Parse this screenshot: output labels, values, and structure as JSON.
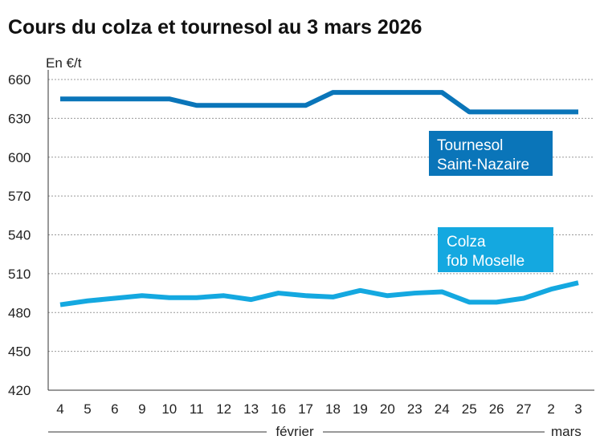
{
  "chart_data": {
    "type": "line",
    "title": "Cours du colza et tournesol au 3 mars 2026",
    "ylabel": "En €/t",
    "ylim": [
      420,
      660
    ],
    "yticks": [
      420,
      450,
      480,
      510,
      540,
      570,
      600,
      630,
      660
    ],
    "categories": [
      "4",
      "5",
      "6",
      "9",
      "10",
      "11",
      "12",
      "13",
      "16",
      "17",
      "18",
      "19",
      "20",
      "23",
      "24",
      "25",
      "26",
      "27",
      "2",
      "3"
    ],
    "month_labels": [
      "février",
      "mars"
    ],
    "grid": true,
    "series": [
      {
        "name": "Tournesol Saint-Nazaire",
        "label_lines": [
          "Tournesol",
          "Saint-Nazaire"
        ],
        "color": "#0a75b9",
        "values": [
          645,
          645,
          645,
          645,
          645,
          640,
          640,
          640,
          640,
          640,
          650,
          650,
          650,
          650,
          650,
          635,
          635,
          635,
          635,
          635
        ]
      },
      {
        "name": "Colza fob Moselle",
        "label_lines": [
          "Colza",
          "fob Moselle"
        ],
        "color": "#14a8e0",
        "values": [
          486,
          489,
          491,
          493,
          491.5,
          491.5,
          493,
          490,
          495,
          493,
          492,
          497,
          493,
          495,
          496,
          488,
          488,
          491,
          498,
          503
        ]
      }
    ]
  }
}
